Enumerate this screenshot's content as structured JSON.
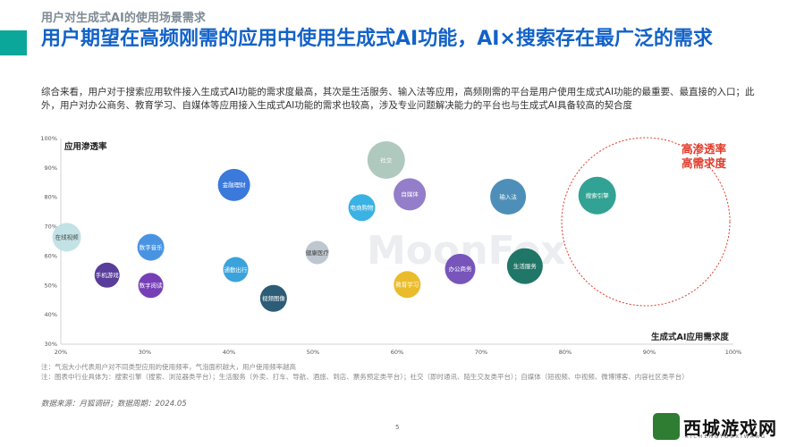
{
  "header": {
    "section_label": "用户对生成式AI的使用场景需求",
    "headline": "用户期望在高频刚需的应用中使用生成式AI功能，AI×搜索存在最广泛的需求",
    "summary": "综合来看，用户对于搜索应用软件接入生成式AI功能的需求度最高，其次是生活服务、输入法等应用，高频刚需的平台是用户使用生成式AI功能的最重要、最直接的入口；此外，用户对办公商务、教育学习、自媒体等应用接入生成式AI功能的需求也较高，涉及专业问题解决能力的平台也与生成式AI具备较高的契合度"
  },
  "chart_data": {
    "type": "scatter",
    "ylabel": "应用渗透率",
    "xlabel": "生成式AI应用需求度",
    "xlim": [
      0.2,
      1.0
    ],
    "ylim": [
      0.3,
      1.0
    ],
    "x_ticks": [
      "20%",
      "30%",
      "40%",
      "50%",
      "60%",
      "70%",
      "80%",
      "90%",
      "100%"
    ],
    "y_ticks": [
      "30%",
      "40%",
      "50%",
      "60%",
      "70%",
      "80%",
      "90%",
      "100%"
    ],
    "annotation": {
      "text_line1": "高渗透率",
      "text_line2": "高需求度",
      "color": "#e23b2a"
    },
    "watermark_text": "MoonFox",
    "points": [
      {
        "label": "在线视频",
        "x": 0.207,
        "y": 0.664,
        "size": 16,
        "color": "#bde0e3",
        "dark_label": true
      },
      {
        "label": "手机游戏",
        "x": 0.255,
        "y": 0.535,
        "size": 14,
        "color": "#4a2c91"
      },
      {
        "label": "数字音乐",
        "x": 0.307,
        "y": 0.63,
        "size": 15,
        "color": "#3a8be0"
      },
      {
        "label": "数字阅读",
        "x": 0.307,
        "y": 0.5,
        "size": 14,
        "color": "#6a2fb0"
      },
      {
        "label": "金融理财",
        "x": 0.406,
        "y": 0.842,
        "size": 18,
        "color": "#2a6ed8"
      },
      {
        "label": "通勤出行",
        "x": 0.408,
        "y": 0.554,
        "size": 14,
        "color": "#2a9bd8"
      },
      {
        "label": "视频图像",
        "x": 0.453,
        "y": 0.456,
        "size": 15,
        "color": "#1b4e6b"
      },
      {
        "label": "健康医疗",
        "x": 0.505,
        "y": 0.612,
        "size": 13,
        "color": "#b8c2cc",
        "dark_label": true
      },
      {
        "label": "电商购物",
        "x": 0.558,
        "y": 0.765,
        "size": 15,
        "color": "#29abe2"
      },
      {
        "label": "社交",
        "x": 0.587,
        "y": 0.927,
        "size": 21,
        "color": "#a9c4b8"
      },
      {
        "label": "自媒体",
        "x": 0.615,
        "y": 0.81,
        "size": 18,
        "color": "#8b73c6"
      },
      {
        "label": "教育学习",
        "x": 0.612,
        "y": 0.503,
        "size": 15,
        "color": "#e8b61a"
      },
      {
        "label": "办公商务",
        "x": 0.675,
        "y": 0.556,
        "size": 17,
        "color": "#6b46b5"
      },
      {
        "label": "输入法",
        "x": 0.732,
        "y": 0.802,
        "size": 20,
        "color": "#3e86b3"
      },
      {
        "label": "搜索引擎",
        "x": 0.838,
        "y": 0.806,
        "size": 21,
        "color": "#1f9a8a"
      },
      {
        "label": "生活服务",
        "x": 0.752,
        "y": 0.566,
        "size": 20,
        "color": "#0e6b5a"
      }
    ]
  },
  "notes": {
    "line1": "注：气泡大小代表用户对不同类型应用的使用频率，气泡面积越大，用户使用频率越高",
    "line2": "注：图表中行业具体为：搜索引擎（搜索、浏览器类平台）；生活服务（外卖、打车、导航、酒旅、到店、票务预定类平台）；社交（即时通讯、陌生交友类平台）；自媒体（短视频、中视频、微博博客、内容社区类平台）"
  },
  "source": "数据来源：月狐调研；数据周期：2024.05",
  "page_number": "5",
  "overlay_watermark": {
    "text": "西城游戏网",
    "sub": "XICHENGYOUXIWANG",
    "overlap": "MoonFox"
  }
}
